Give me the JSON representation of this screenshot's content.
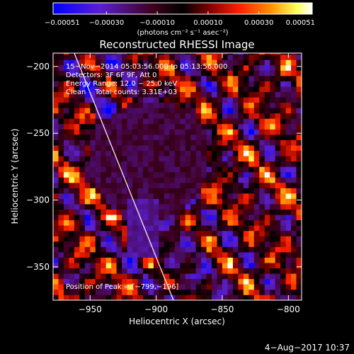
{
  "chart_data": {
    "type": "heatmap",
    "title": "Reconstructed RHESSI Image",
    "xlabel": "Heliocentric X (arcsec)",
    "ylabel": "Heliocentric Y (arcsec)",
    "xlim": [
      -978,
      -790
    ],
    "ylim": [
      -375,
      -190
    ],
    "x_ticks": [
      {
        "value": -950,
        "label": "−950"
      },
      {
        "value": -900,
        "label": "−900"
      },
      {
        "value": -850,
        "label": "−850"
      },
      {
        "value": -800,
        "label": "−800"
      }
    ],
    "y_ticks": [
      {
        "value": -200,
        "label": "−200"
      },
      {
        "value": -250,
        "label": "−250"
      },
      {
        "value": -300,
        "label": "−300"
      },
      {
        "value": -350,
        "label": "−350"
      }
    ],
    "colorbar": {
      "range": [
        -0.00051,
        0.00051
      ],
      "tick_values": [
        -0.00051,
        -0.0003,
        -0.0001,
        0.0001,
        0.0003,
        0.00051
      ],
      "tick_labels": [
        "−0.00051",
        "−0.00030",
        "−0.00010",
        "0.00010",
        "0.00030",
        "0.00051"
      ],
      "unit_label": "(photons cm⁻² s⁻¹ asec⁻²)",
      "colors": [
        "#0000ff",
        "#5a1fd0",
        "#400020",
        "#000000",
        "#7a0000",
        "#ff2000",
        "#ff9000",
        "#ffff60",
        "#ffffff"
      ]
    },
    "annotations": [
      "15−Nov−2014 05:03:56.000 to 05:13:56.000",
      "Detectors: 3F 6F 9F, Att 0",
      "Energy Range: 12.0 − 25.0 keV",
      "Clean    Total counts: 3.31E+03"
    ],
    "peak_label": "Position of Peak = [−799,−196]",
    "limb_line": [
      {
        "x": -962,
        "y": -190
      },
      {
        "x": -887,
        "y": -375
      }
    ],
    "grid": false,
    "pixel_size_arcsec": 4
  },
  "footer": {
    "date": "4−Aug−2017 10:37"
  }
}
